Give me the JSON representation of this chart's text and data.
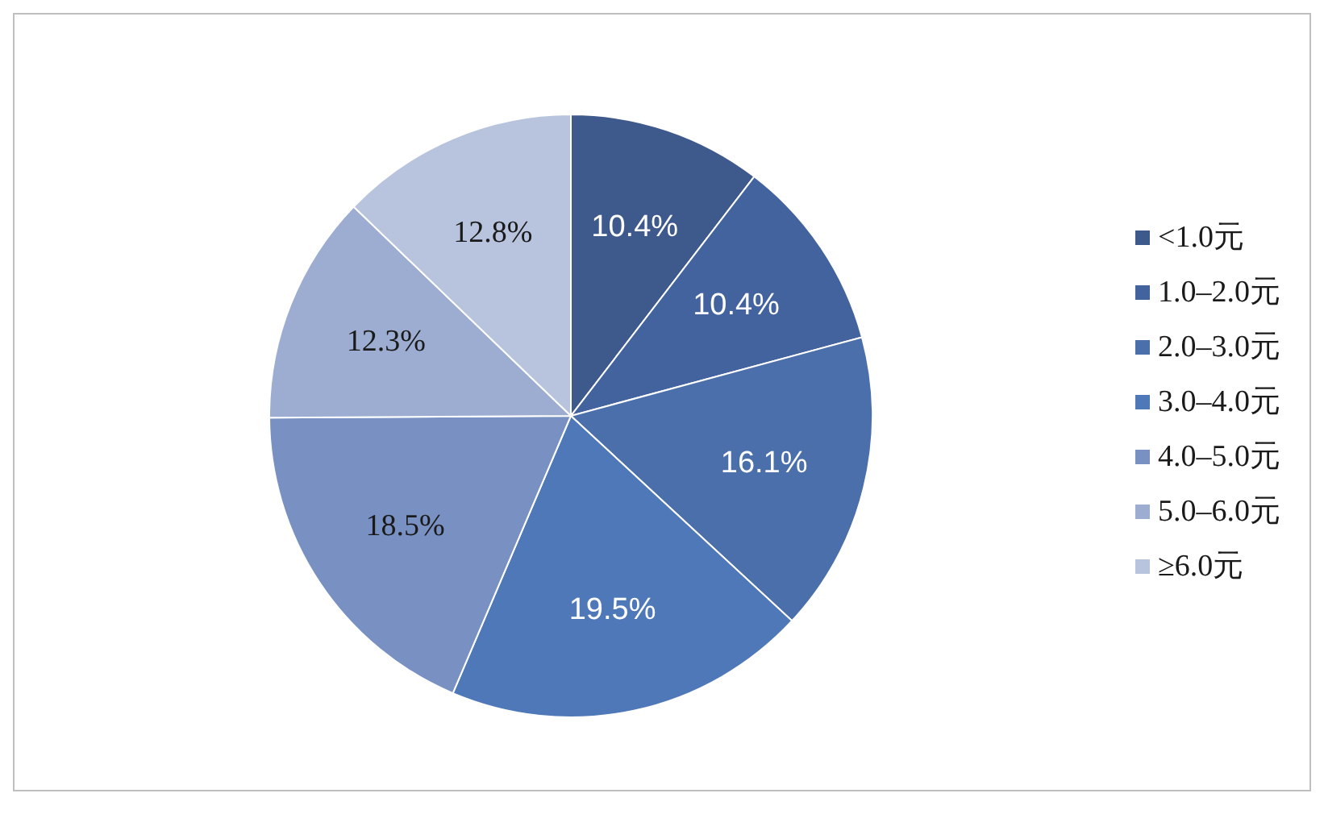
{
  "chart_data": {
    "type": "pie",
    "categories": [
      "<1.0元",
      "1.0–2.0元",
      "2.0–3.0元",
      "3.0–4.0元",
      "4.0–5.0元",
      "5.0–6.0元",
      "≥6.0元"
    ],
    "values": [
      10.4,
      10.4,
      16.1,
      19.5,
      18.5,
      12.3,
      12.8
    ],
    "value_labels": [
      "10.4%",
      "10.4%",
      "16.1%",
      "19.5%",
      "18.5%",
      "12.3%",
      "12.8%"
    ],
    "colors": [
      "#3e5a8c",
      "#43639f",
      "#4a6fab",
      "#4f78b8",
      "#7891c2",
      "#9dadd1",
      "#b8c4de"
    ],
    "legend": "right"
  }
}
